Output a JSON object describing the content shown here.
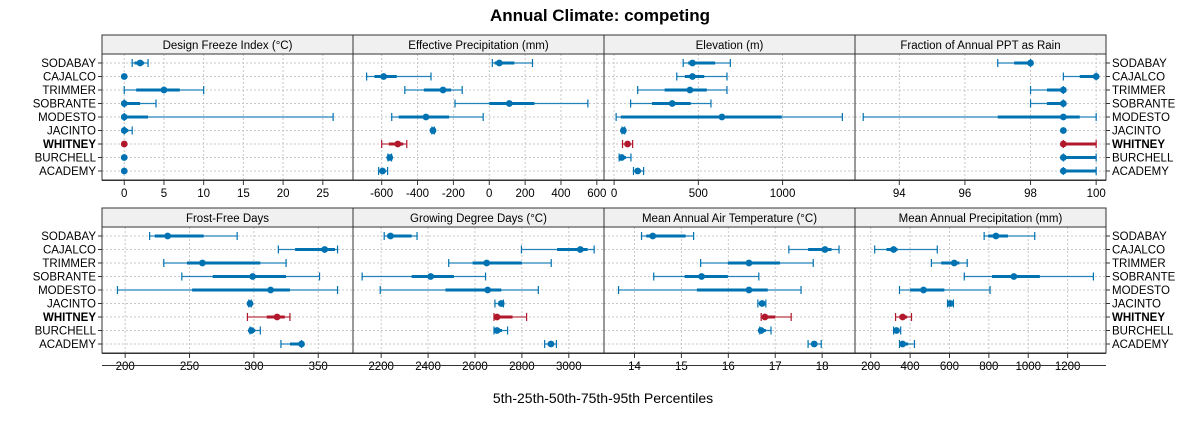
{
  "chart_data": {
    "type": "dotplot-percentiles",
    "title": "Annual Climate: competing",
    "xlabel": "5th-25th-50th-75th-95th Percentiles",
    "ylabel": "",
    "sites": [
      "SODABAY",
      "CAJALCO",
      "TRIMMER",
      "SOBRANTE",
      "MODESTO",
      "JACINTO",
      "WHITNEY",
      "BURCHELL",
      "ACADEMY"
    ],
    "highlight_site": "WHITNEY",
    "colors": {
      "default": "#0072b2",
      "highlight": "#b2182b",
      "strip_bg": "#f0f0f0",
      "grid": "#c8c8c8"
    },
    "percentile_keys": [
      "p5",
      "p25",
      "p50",
      "p75",
      "p95"
    ],
    "grid": true,
    "panels": [
      {
        "title": "Design Freeze Index (°C)",
        "xlim": [
          -2.8,
          28.8
        ],
        "ticks": [
          0,
          5,
          10,
          15,
          20,
          25
        ],
        "tick_labels": [
          "0",
          "5",
          "10",
          "15",
          "20",
          "25"
        ],
        "values": {
          "SODABAY": [
            1,
            1.3,
            2,
            2.5,
            3
          ],
          "CAJALCO": [
            0,
            0,
            0,
            0,
            0
          ],
          "TRIMMER": [
            0,
            1.5,
            5,
            7,
            10
          ],
          "SOBRANTE": [
            0,
            0,
            0,
            2,
            4
          ],
          "MODESTO": [
            0,
            0,
            0,
            3,
            26.3
          ],
          "JACINTO": [
            0,
            0,
            0,
            0.5,
            1
          ],
          "WHITNEY": [
            0,
            0,
            0,
            0,
            0
          ],
          "BURCHELL": [
            0,
            0,
            0,
            0,
            0
          ],
          "ACADEMY": [
            0,
            0,
            0,
            0,
            0
          ]
        }
      },
      {
        "title": "Effective Precipitation (mm)",
        "xlim": [
          -760,
          640
        ],
        "ticks": [
          -600,
          -400,
          -200,
          0,
          200,
          400,
          600
        ],
        "tick_labels": [
          "-600",
          "-400",
          "-200",
          "0",
          "200",
          "400",
          "600"
        ],
        "values": {
          "SODABAY": [
            17,
            30,
            56,
            140,
            241
          ],
          "CAJALCO": [
            -684,
            -640,
            -589,
            -516,
            -325
          ],
          "TRIMMER": [
            -471,
            -365,
            -258,
            -213,
            -151
          ],
          "SOBRANTE": [
            -191,
            0,
            112,
            252,
            550
          ],
          "MODESTO": [
            -544,
            -505,
            -353,
            -224,
            -34
          ],
          "JACINTO": [
            -320,
            -318,
            -314,
            -310,
            -306
          ],
          "WHITNEY": [
            -600,
            -560,
            -510,
            -480,
            -460
          ],
          "BURCHELL": [
            -565,
            -560,
            -555,
            -550,
            -545
          ],
          "ACADEMY": [
            -617,
            -605,
            -595,
            -585,
            -567
          ]
        }
      },
      {
        "title": "Elevation (m)",
        "xlim": [
          -60,
          1430
        ],
        "ticks": [
          0,
          500,
          1000
        ],
        "tick_labels": [
          "0",
          "500",
          "1000"
        ],
        "values": {
          "SODABAY": [
            410,
            440,
            465,
            600,
            690
          ],
          "CAJALCO": [
            372,
            420,
            465,
            535,
            670
          ],
          "TRIMMER": [
            140,
            300,
            450,
            550,
            670
          ],
          "SOBRANTE": [
            98,
            225,
            345,
            455,
            575
          ],
          "MODESTO": [
            12,
            40,
            640,
            995,
            1355
          ],
          "JACINTO": [
            47,
            50,
            55,
            60,
            63
          ],
          "WHITNEY": [
            50,
            65,
            80,
            95,
            110
          ],
          "BURCHELL": [
            30,
            38,
            45,
            70,
            100
          ],
          "ACADEMY": [
            115,
            128,
            140,
            155,
            175
          ]
        }
      },
      {
        "title": "Fraction of Annual PPT as Rain",
        "xlim": [
          92.65,
          100.3
        ],
        "ticks": [
          94,
          96,
          98,
          100
        ],
        "tick_labels": [
          "94",
          "96",
          "98",
          "100"
        ],
        "values": {
          "SODABAY": [
            97,
            97.5,
            98,
            98,
            98
          ],
          "CAJALCO": [
            99,
            99.5,
            100,
            100,
            100
          ],
          "TRIMMER": [
            98,
            98.5,
            99,
            99,
            99
          ],
          "SOBRANTE": [
            98,
            98.5,
            99,
            99,
            99
          ],
          "MODESTO": [
            92.9,
            97,
            99,
            99.5,
            100
          ],
          "JACINTO": [
            99,
            99,
            99,
            99,
            99
          ],
          "WHITNEY": [
            99,
            99,
            99,
            100,
            100
          ],
          "BURCHELL": [
            99,
            99,
            99,
            100,
            100
          ],
          "ACADEMY": [
            99,
            99,
            99,
            100,
            100
          ]
        }
      },
      {
        "title": "Frost-Free Days",
        "xlim": [
          182,
          377
        ],
        "ticks": [
          200,
          250,
          300,
          350
        ],
        "tick_labels": [
          "200",
          "250",
          "300",
          "350"
        ],
        "values": {
          "SODABAY": [
            219,
            223,
            233,
            261,
            287
          ],
          "CAJALCO": [
            319,
            332,
            355,
            363,
            365
          ],
          "TRIMMER": [
            230,
            248,
            260,
            305,
            325
          ],
          "SOBRANTE": [
            244,
            268,
            299,
            325,
            351
          ],
          "MODESTO": [
            194,
            252,
            313,
            328,
            365
          ],
          "JACINTO": [
            296,
            296,
            297,
            298,
            298
          ],
          "WHITNEY": [
            295,
            310,
            318,
            324,
            328
          ],
          "BURCHELL": [
            297,
            297,
            298,
            301,
            305
          ],
          "ACADEMY": [
            321,
            328,
            337,
            337,
            337
          ]
        }
      },
      {
        "title": "Growing Degree Days (°C)",
        "xlim": [
          2080,
          3150
        ],
        "ticks": [
          2200,
          2400,
          2600,
          2800,
          3000
        ],
        "tick_labels": [
          "2200",
          "2400",
          "2600",
          "2800",
          "3000"
        ],
        "values": {
          "SODABAY": [
            2213,
            2225,
            2240,
            2330,
            2353
          ],
          "CAJALCO": [
            2798,
            2950,
            3049,
            3080,
            3108
          ],
          "TRIMMER": [
            2488,
            2590,
            2650,
            2800,
            2925
          ],
          "SOBRANTE": [
            2119,
            2330,
            2411,
            2510,
            2645
          ],
          "MODESTO": [
            2196,
            2474,
            2654,
            2712,
            2870
          ],
          "JACINTO": [
            2685,
            2700,
            2712,
            2716,
            2721
          ],
          "WHITNEY": [
            2681,
            2688,
            2694,
            2760,
            2820
          ],
          "BURCHELL": [
            2681,
            2688,
            2694,
            2715,
            2739
          ],
          "ACADEMY": [
            2897,
            2910,
            2924,
            2935,
            2947
          ]
        }
      },
      {
        "title": "Mean Annual Air Temperature (°C)",
        "xlim": [
          13.35,
          18.7
        ],
        "ticks": [
          14,
          15,
          16,
          17,
          18
        ],
        "tick_labels": [
          "14",
          "15",
          "16",
          "17",
          "18"
        ],
        "values": {
          "SODABAY": [
            14.15,
            14.25,
            14.39,
            15.09,
            15.26
          ],
          "CAJALCO": [
            17.29,
            17.7,
            18.06,
            18.2,
            18.36
          ],
          "TRIMMER": [
            15.41,
            15.99,
            16.44,
            17.1,
            17.81
          ],
          "SOBRANTE": [
            14.41,
            15.07,
            15.43,
            15.99,
            16.65
          ],
          "MODESTO": [
            13.66,
            15.33,
            16.44,
            16.84,
            17.55
          ],
          "JACINTO": [
            16.63,
            16.68,
            16.72,
            16.76,
            16.8
          ],
          "WHITNEY": [
            16.7,
            16.74,
            16.78,
            17.0,
            17.34
          ],
          "BURCHELL": [
            16.67,
            16.69,
            16.7,
            16.8,
            16.91
          ],
          "ACADEMY": [
            17.7,
            17.76,
            17.83,
            17.9,
            17.98
          ]
        }
      },
      {
        "title": "Mean Annual Precipitation (mm)",
        "xlim": [
          120,
          1395
        ],
        "ticks": [
          200,
          400,
          600,
          800,
          1000,
          1200
        ],
        "tick_labels": [
          "200",
          "400",
          "600",
          "800",
          "1000",
          "1200"
        ],
        "values": {
          "SODABAY": [
            776,
            796,
            836,
            897,
            1033
          ],
          "CAJALCO": [
            220,
            280,
            316,
            336,
            538
          ],
          "TRIMMER": [
            508,
            558,
            624,
            650,
            690
          ],
          "SOBRANTE": [
            675,
            816,
            927,
            1059,
            1331
          ],
          "MODESTO": [
            346,
            400,
            468,
            574,
            806
          ],
          "JACINTO": [
            590,
            597,
            604,
            612,
            620
          ],
          "WHITNEY": [
            326,
            345,
            362,
            385,
            407
          ],
          "BURCHELL": [
            316,
            323,
            331,
            340,
            352
          ],
          "ACADEMY": [
            346,
            352,
            362,
            390,
            422
          ]
        }
      }
    ]
  }
}
